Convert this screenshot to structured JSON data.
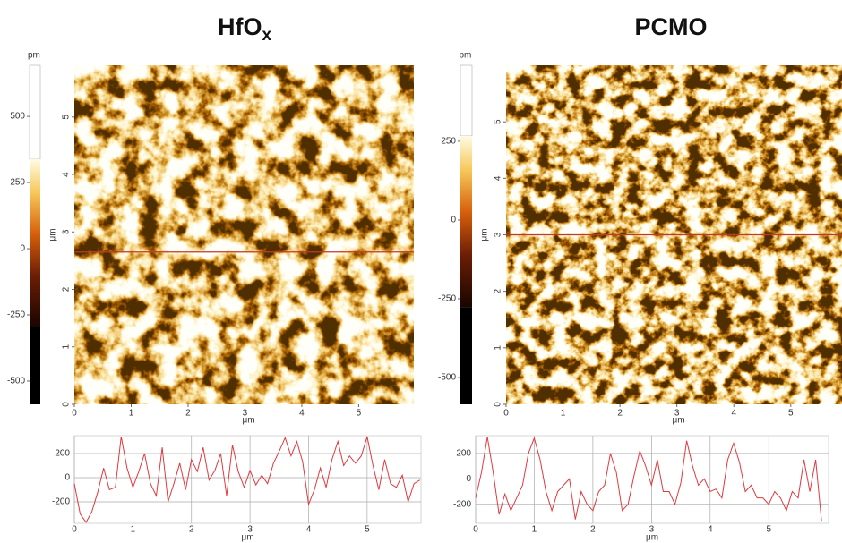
{
  "chart_data": [
    {
      "type": "afm",
      "title": "HfO",
      "title_subscript": "x",
      "colorbar": {
        "unit": "pm",
        "ylim": [
          -588,
          693
        ],
        "yticks": [
          500,
          250,
          0,
          -250,
          -500
        ],
        "color_range": [
          -294,
          338
        ]
      },
      "image": {
        "xlim": [
          0,
          5.97
        ],
        "ylim": [
          0,
          5.9
        ],
        "xticks": [
          0,
          1,
          2,
          3,
          4,
          5
        ],
        "yticks": [
          0,
          1,
          2,
          3,
          4,
          5
        ],
        "xlabel": "μm",
        "ylabel": "μm",
        "profile_y": 2.65
      },
      "profile": {
        "color": "#e0393e",
        "xlim": [
          0,
          5.92
        ],
        "ylim": [
          -378,
          348
        ],
        "xticks": [
          0,
          1,
          2,
          3,
          4,
          5
        ],
        "yticks": [
          200,
          0,
          -200
        ],
        "xlabel": "μm",
        "x": [
          0,
          0.1,
          0.2,
          0.3,
          0.4,
          0.5,
          0.6,
          0.7,
          0.8,
          0.9,
          1.0,
          1.1,
          1.2,
          1.3,
          1.4,
          1.5,
          1.6,
          1.7,
          1.8,
          1.9,
          2.0,
          2.1,
          2.2,
          2.3,
          2.4,
          2.5,
          2.6,
          2.7,
          2.8,
          2.9,
          3.0,
          3.1,
          3.2,
          3.3,
          3.4,
          3.5,
          3.6,
          3.7,
          3.8,
          3.9,
          4.0,
          4.1,
          4.2,
          4.3,
          4.4,
          4.5,
          4.6,
          4.7,
          4.8,
          4.9,
          5.0,
          5.1,
          5.2,
          5.3,
          5.4,
          5.5,
          5.6,
          5.7,
          5.8,
          5.9
        ],
        "values": [
          -50,
          -300,
          -370,
          -280,
          -120,
          80,
          -100,
          -80,
          340,
          80,
          -80,
          50,
          200,
          -50,
          -150,
          250,
          -200,
          -50,
          120,
          -100,
          150,
          50,
          250,
          -20,
          60,
          200,
          -150,
          270,
          50,
          -80,
          60,
          -60,
          20,
          -50,
          120,
          220,
          330,
          180,
          300,
          130,
          -220,
          -100,
          80,
          -80,
          150,
          300,
          100,
          180,
          120,
          180,
          340,
          100,
          -100,
          150,
          -50,
          -80,
          20,
          -200,
          -50,
          -20
        ]
      }
    },
    {
      "type": "afm",
      "title": "PCMO",
      "colorbar": {
        "unit": "pm",
        "ylim": [
          -585,
          491
        ],
        "yticks": [
          250,
          0,
          -250,
          -500
        ],
        "color_range": [
          -276,
          267
        ]
      },
      "image": {
        "xlim": [
          0,
          5.9
        ],
        "ylim": [
          0,
          6.0
        ],
        "xticks": [
          0,
          1,
          2,
          3,
          4,
          5
        ],
        "yticks": [
          0,
          1,
          2,
          3,
          4,
          5
        ],
        "xlabel": "μm",
        "ylabel": "μm",
        "profile_y": 3.0
      },
      "profile": {
        "color": "#e0393e",
        "xlim": [
          0,
          6.02
        ],
        "ylim": [
          -350,
          340
        ],
        "xticks": [
          0,
          1,
          2,
          3,
          4,
          5
        ],
        "yticks": [
          200,
          0,
          -200
        ],
        "xlabel": "μm",
        "x": [
          0,
          0.1,
          0.2,
          0.3,
          0.4,
          0.5,
          0.6,
          0.7,
          0.8,
          0.9,
          1.0,
          1.1,
          1.2,
          1.3,
          1.4,
          1.5,
          1.6,
          1.7,
          1.8,
          1.9,
          2.0,
          2.1,
          2.2,
          2.3,
          2.4,
          2.5,
          2.6,
          2.7,
          2.8,
          2.9,
          3.0,
          3.1,
          3.2,
          3.3,
          3.4,
          3.5,
          3.6,
          3.7,
          3.8,
          3.9,
          4.0,
          4.1,
          4.2,
          4.3,
          4.4,
          4.5,
          4.6,
          4.7,
          4.8,
          4.9,
          5.0,
          5.1,
          5.2,
          5.3,
          5.4,
          5.5,
          5.6,
          5.7,
          5.8,
          5.9
        ],
        "values": [
          -150,
          50,
          330,
          50,
          -280,
          -120,
          -250,
          -150,
          -50,
          200,
          320,
          150,
          -100,
          -250,
          -100,
          -50,
          0,
          -320,
          -100,
          -200,
          -250,
          -100,
          -50,
          200,
          50,
          -250,
          -200,
          20,
          220,
          100,
          -50,
          150,
          -100,
          -100,
          -200,
          -30,
          300,
          100,
          -50,
          0,
          -100,
          -80,
          -150,
          150,
          280,
          130,
          -100,
          -50,
          -150,
          -150,
          -200,
          -100,
          -150,
          -250,
          -100,
          -150,
          150,
          -100,
          150,
          -330
        ]
      }
    }
  ]
}
